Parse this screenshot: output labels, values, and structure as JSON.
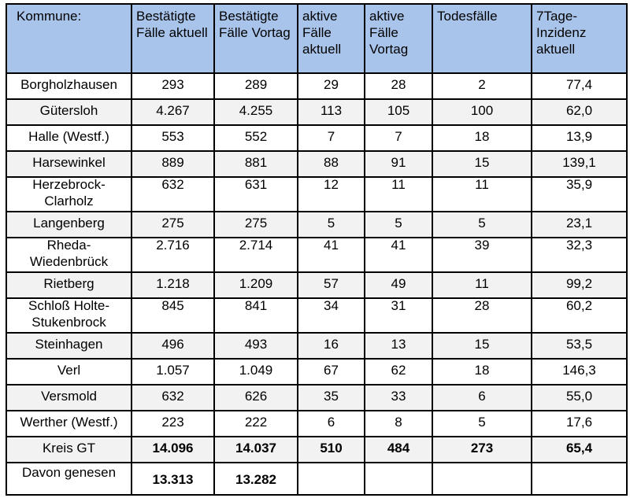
{
  "headers": [
    "Kommune:",
    "Bestätigte Fälle aktuell",
    "Bestätigte Fälle Vortag",
    "aktive Fälle aktuell",
    "aktive Fälle Vortag",
    "Todesfälle",
    "7Tage-Inzidenz aktuell"
  ],
  "rows": [
    [
      "Borgholzhausen",
      "293",
      "289",
      "29",
      "28",
      "2",
      "77,4"
    ],
    [
      "Gütersloh",
      "4.267",
      "4.255",
      "113",
      "105",
      "100",
      "62,0"
    ],
    [
      "Halle (Westf.)",
      "553",
      "552",
      "7",
      "7",
      "18",
      "13,9"
    ],
    [
      "Harsewinkel",
      "889",
      "881",
      "88",
      "91",
      "15",
      "139,1"
    ],
    [
      "Herzebrock-\nClarholz",
      "632",
      "631",
      "12",
      "11",
      "11",
      "35,9"
    ],
    [
      "Langenberg",
      "275",
      "275",
      "5",
      "5",
      "5",
      "23,1"
    ],
    [
      "Rheda-\nWiedenbrück",
      "2.716",
      "2.714",
      "41",
      "41",
      "39",
      "32,3"
    ],
    [
      "Rietberg",
      "1.218",
      "1.209",
      "57",
      "49",
      "11",
      "99,2"
    ],
    [
      "Schloß Holte-\nStukenbrock",
      "845",
      "841",
      "34",
      "31",
      "28",
      "60,2"
    ],
    [
      "Steinhagen",
      "496",
      "493",
      "16",
      "13",
      "15",
      "53,5"
    ],
    [
      "Verl",
      "1.057",
      "1.049",
      "67",
      "62",
      "18",
      "146,3"
    ],
    [
      "Versmold",
      "632",
      "626",
      "35",
      "33",
      "6",
      "55,0"
    ],
    [
      "Werther (Westf.)",
      "223",
      "222",
      "6",
      "8",
      "5",
      "17,6"
    ],
    [
      "Kreis GT",
      "14.096",
      "14.037",
      "510",
      "484",
      "273",
      "65,4"
    ],
    [
      "Davon genesen",
      "13.313",
      "13.282",
      "",
      "",
      "",
      ""
    ]
  ]
}
